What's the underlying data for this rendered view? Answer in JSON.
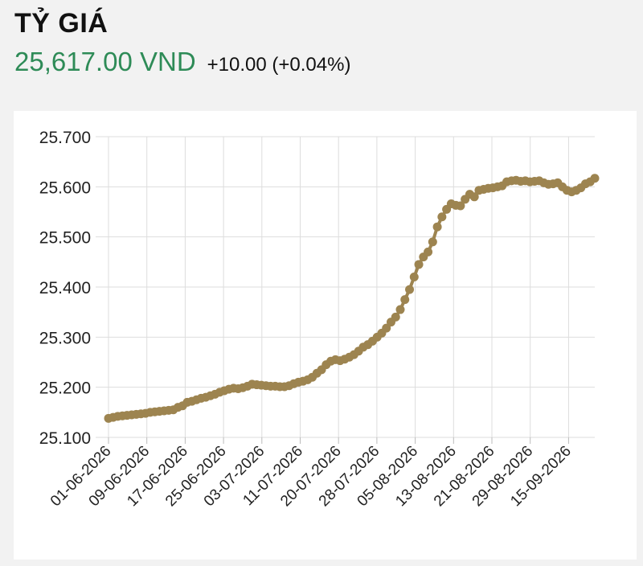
{
  "header": {
    "title": "TỶ GIÁ",
    "price": "25,617.00 VND",
    "change": "+10.00 (+0.04%)"
  },
  "colors": {
    "price": "#2e8b57",
    "series": "#9d8450",
    "grid": "#dddddd"
  },
  "chart_data": {
    "type": "line",
    "title": "",
    "xlabel": "",
    "ylabel": "",
    "ylim": [
      25100,
      25700
    ],
    "y_ticks": [
      25100,
      25200,
      25300,
      25400,
      25500,
      25600,
      25700
    ],
    "y_tick_labels": [
      "25.100",
      "25.200",
      "25.300",
      "25.400",
      "25.500",
      "25.600",
      "25.700"
    ],
    "x_tick_labels": [
      "01-06-2026",
      "09-06-2026",
      "17-06-2026",
      "25-06-2026",
      "03-07-2026",
      "11-07-2026",
      "20-07-2026",
      "28-07-2026",
      "05-08-2026",
      "13-08-2026",
      "21-08-2026",
      "29-08-2026",
      "15-09-2026"
    ],
    "grid": true,
    "legend": "none",
    "series": [
      {
        "values": [
          25138,
          25140,
          25142,
          25143,
          25144,
          25145,
          25146,
          25147,
          25148,
          25150,
          25151,
          25152,
          25153,
          25154,
          25155,
          25160,
          25163,
          25170,
          25172,
          25175,
          25178,
          25180,
          25183,
          25186,
          25190,
          25193,
          25196,
          25198,
          25197,
          25199,
          25202,
          25206,
          25205,
          25204,
          25203,
          25202,
          25202,
          25201,
          25201,
          25203,
          25207,
          25210,
          25212,
          25215,
          25220,
          25228,
          25235,
          25245,
          25252,
          25255,
          25253,
          25256,
          25260,
          25265,
          25272,
          25280,
          25285,
          25292,
          25300,
          25308,
          25318,
          25330,
          25340,
          25355,
          25375,
          25395,
          25420,
          25445,
          25460,
          25470,
          25490,
          25520,
          25540,
          25555,
          25566,
          25563,
          25562,
          25575,
          25585,
          25580,
          25593,
          25595,
          25597,
          25598,
          25600,
          25602,
          25610,
          25612,
          25613,
          25611,
          25612,
          25610,
          25611,
          25612,
          25608,
          25605,
          25606,
          25608,
          25600,
          25593,
          25590,
          25593,
          25598,
          25606,
          25610,
          25617
        ]
      }
    ]
  }
}
